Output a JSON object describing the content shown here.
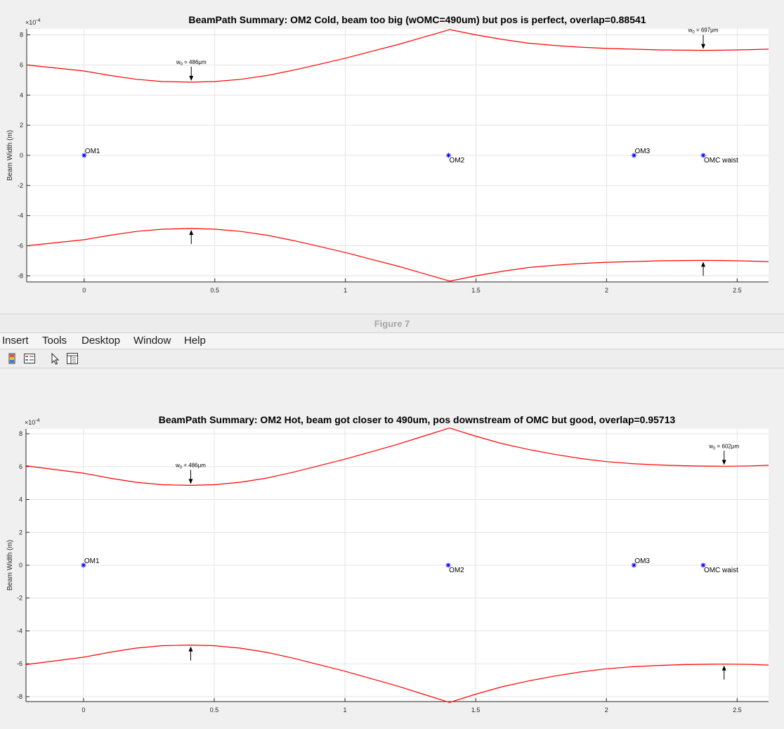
{
  "window": {
    "figure_title": "Figure 7",
    "menu": [
      "Insert",
      "Tools",
      "Desktop",
      "Window",
      "Help"
    ],
    "toolbar_icons": [
      "insert-colorbar-icon",
      "insert-legend-icon",
      "edit-plot-pointer-icon",
      "property-inspector-icon"
    ]
  },
  "colors": {
    "beam": "#ff0000",
    "marker": "#0000ff",
    "grid": "#e3e3e3",
    "axis": "#262626"
  },
  "chart_data": [
    {
      "type": "line",
      "title": "BeamPath Summary: OM2 Cold, beam too big (wOMC=490um) but pos is perfect, overlap=0.88541",
      "ylabel": "Beam Width (m)",
      "xlabel": "",
      "exponent_label": "×10",
      "exponent_power": "-4",
      "xlim": [
        -0.22,
        2.62
      ],
      "ylim": [
        -8.4,
        8.4
      ],
      "y_scale": "1e-4",
      "grid": true,
      "xticks": [
        0,
        0.5,
        1,
        1.5,
        2,
        2.5
      ],
      "xtick_labels": [
        "0",
        "0.5",
        "1",
        "1.5",
        "2",
        "2.5"
      ],
      "yticks": [
        -8,
        -6,
        -4,
        -2,
        0,
        2,
        4,
        6,
        8
      ],
      "ytick_labels": [
        "-8",
        "-6",
        "-4",
        "-2",
        "0",
        "2",
        "4",
        "6",
        "8"
      ],
      "series": [
        {
          "x": [
            -0.22,
            0,
            0.1,
            0.2,
            0.3,
            0.41,
            0.5,
            0.6,
            0.7,
            0.8,
            0.9,
            1.0,
            1.1,
            1.2,
            1.3,
            1.4
          ],
          "y": [
            6.0,
            5.6,
            5.3,
            5.05,
            4.9,
            4.86,
            4.9,
            5.05,
            5.3,
            5.65,
            6.05,
            6.45,
            6.9,
            7.35,
            7.85,
            8.35
          ]
        },
        {
          "x": [
            1.4,
            1.5,
            1.6,
            1.7,
            1.8,
            1.9,
            2.0,
            2.1,
            2.2,
            2.3,
            2.37,
            2.45,
            2.55,
            2.62
          ],
          "y": [
            8.35,
            8.0,
            7.7,
            7.45,
            7.3,
            7.18,
            7.1,
            7.05,
            7.0,
            6.98,
            6.97,
            6.98,
            7.02,
            7.05
          ]
        },
        {
          "x": [
            -0.22,
            0,
            0.1,
            0.2,
            0.3,
            0.41,
            0.5,
            0.6,
            0.7,
            0.8,
            0.9,
            1.0,
            1.1,
            1.2,
            1.3,
            1.4
          ],
          "y": [
            -6.0,
            -5.6,
            -5.3,
            -5.05,
            -4.9,
            -4.86,
            -4.9,
            -5.05,
            -5.3,
            -5.65,
            -6.05,
            -6.45,
            -6.9,
            -7.35,
            -7.85,
            -8.35
          ]
        },
        {
          "x": [
            1.4,
            1.5,
            1.6,
            1.7,
            1.8,
            1.9,
            2.0,
            2.1,
            2.2,
            2.3,
            2.37,
            2.45,
            2.55,
            2.62
          ],
          "y": [
            -8.35,
            -8.0,
            -7.7,
            -7.45,
            -7.3,
            -7.18,
            -7.1,
            -7.05,
            -7.0,
            -6.98,
            -6.97,
            -6.98,
            -7.02,
            -7.05
          ]
        }
      ],
      "markers": [
        {
          "x": 0,
          "y": 0,
          "label": "OM1",
          "label_pos": "above"
        },
        {
          "x": 1.395,
          "y": 0,
          "label": "OM2",
          "label_pos": "below"
        },
        {
          "x": 2.105,
          "y": 0,
          "label": "OM3",
          "label_pos": "above"
        },
        {
          "x": 2.37,
          "y": 0,
          "label": "OMC waist",
          "label_pos": "below"
        }
      ],
      "waists": [
        {
          "x": 0.41,
          "y": 4.86,
          "label_w": "w",
          "label_sub": "0",
          "label_rest": " = 486μm"
        },
        {
          "x": 2.37,
          "y": 6.97,
          "label_w": "w",
          "label_sub": "0",
          "label_rest": " = 697μm"
        }
      ]
    },
    {
      "type": "line",
      "title": "BeamPath Summary: OM2 Hot, beam got closer to 490um, pos downstream of OMC but good, overlap=0.95713",
      "ylabel": "Beam Width (m)",
      "xlabel": "",
      "exponent_label": "×10",
      "exponent_power": "-4",
      "xlim": [
        -0.22,
        2.62
      ],
      "ylim": [
        -8.3,
        8.3
      ],
      "y_scale": "1e-4",
      "grid": true,
      "xticks": [
        0,
        0.5,
        1,
        1.5,
        2,
        2.5
      ],
      "xtick_labels": [
        "0",
        "0.5",
        "1",
        "1.5",
        "2",
        "2.5"
      ],
      "yticks": [
        -8,
        -6,
        -4,
        -2,
        0,
        2,
        4,
        6,
        8
      ],
      "ytick_labels": [
        "-8",
        "-6",
        "-4",
        "-2",
        "0",
        "2",
        "4",
        "6",
        "8"
      ],
      "series": [
        {
          "x": [
            -0.22,
            0,
            0.1,
            0.2,
            0.3,
            0.41,
            0.5,
            0.6,
            0.7,
            0.8,
            0.9,
            1.0,
            1.1,
            1.2,
            1.3,
            1.4
          ],
          "y": [
            6.05,
            5.6,
            5.3,
            5.05,
            4.9,
            4.86,
            4.9,
            5.05,
            5.3,
            5.65,
            6.05,
            6.45,
            6.9,
            7.35,
            7.85,
            8.35
          ]
        },
        {
          "x": [
            1.4,
            1.5,
            1.6,
            1.7,
            1.8,
            1.9,
            2.0,
            2.1,
            2.2,
            2.3,
            2.4,
            2.45,
            2.55,
            2.62
          ],
          "y": [
            8.35,
            7.85,
            7.4,
            7.05,
            6.75,
            6.5,
            6.3,
            6.18,
            6.1,
            6.05,
            6.03,
            6.02,
            6.04,
            6.08
          ]
        },
        {
          "x": [
            -0.22,
            0,
            0.1,
            0.2,
            0.3,
            0.41,
            0.5,
            0.6,
            0.7,
            0.8,
            0.9,
            1.0,
            1.1,
            1.2,
            1.3,
            1.4
          ],
          "y": [
            -6.05,
            -5.6,
            -5.3,
            -5.05,
            -4.9,
            -4.86,
            -4.9,
            -5.05,
            -5.3,
            -5.65,
            -6.05,
            -6.45,
            -6.9,
            -7.35,
            -7.85,
            -8.35
          ]
        },
        {
          "x": [
            1.4,
            1.5,
            1.6,
            1.7,
            1.8,
            1.9,
            2.0,
            2.1,
            2.2,
            2.3,
            2.4,
            2.45,
            2.55,
            2.62
          ],
          "y": [
            -8.35,
            -7.85,
            -7.4,
            -7.05,
            -6.75,
            -6.5,
            -6.3,
            -6.18,
            -6.1,
            -6.05,
            -6.03,
            -6.02,
            -6.04,
            -6.08
          ]
        }
      ],
      "markers": [
        {
          "x": 0,
          "y": 0,
          "label": "OM1",
          "label_pos": "above"
        },
        {
          "x": 1.395,
          "y": 0,
          "label": "OM2",
          "label_pos": "below"
        },
        {
          "x": 2.105,
          "y": 0,
          "label": "OM3",
          "label_pos": "above"
        },
        {
          "x": 2.37,
          "y": 0,
          "label": "OMC waist",
          "label_pos": "below"
        }
      ],
      "waists": [
        {
          "x": 0.41,
          "y": 4.86,
          "label_w": "w",
          "label_sub": "0",
          "label_rest": " = 486μm"
        },
        {
          "x": 2.45,
          "y": 6.02,
          "label_w": "w",
          "label_sub": "0",
          "label_rest": " = 602μm"
        }
      ]
    }
  ]
}
